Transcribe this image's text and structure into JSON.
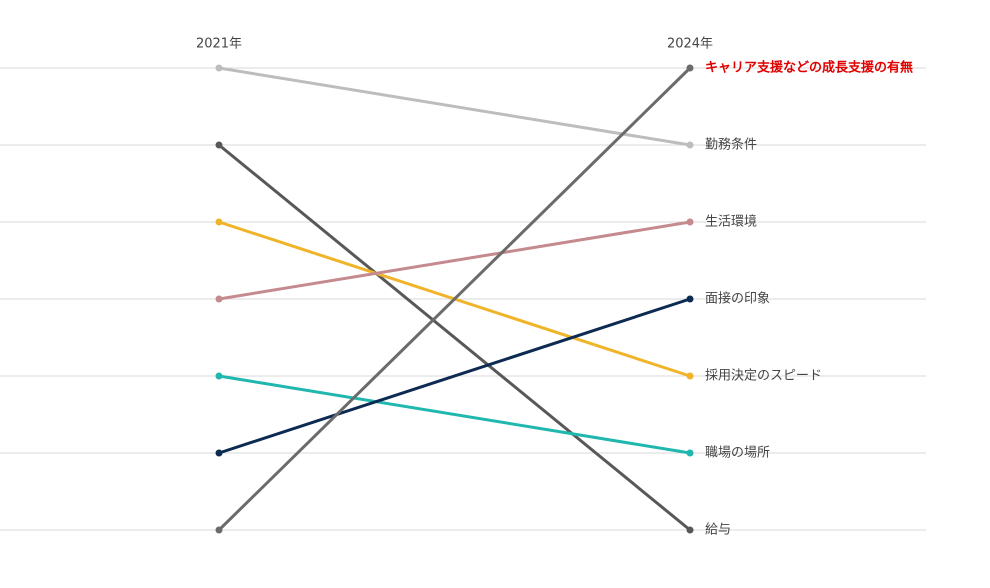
{
  "chart_data": {
    "type": "slope",
    "categories": [
      "2021年",
      "2024年"
    ],
    "ylim": [
      1,
      7
    ],
    "y_reversed": true,
    "yticks": [
      1,
      2,
      3,
      4,
      5,
      6,
      7
    ],
    "show_ytick_labels": false,
    "grid": true,
    "series": [
      {
        "name": "勤務条件",
        "color": "#bdbdbd",
        "values": [
          1,
          2
        ]
      },
      {
        "name": "給与",
        "color": "#585858",
        "values": [
          2,
          7
        ]
      },
      {
        "name": "採用決定のスピード",
        "color": "#f0b429",
        "values": [
          3,
          5
        ]
      },
      {
        "name": "生活環境",
        "color": "#c48a8e",
        "values": [
          4,
          3
        ]
      },
      {
        "name": "職場の場所",
        "color": "#1fb7ae",
        "values": [
          5,
          6
        ]
      },
      {
        "name": "面接の印象",
        "color": "#0d2a52",
        "values": [
          6,
          4
        ]
      },
      {
        "name": "キャリア支援などの成長支援の有無",
        "color": "#6b6b6b",
        "values": [
          7,
          1
        ],
        "label_color": "#e00000",
        "label_bold": true
      }
    ]
  }
}
